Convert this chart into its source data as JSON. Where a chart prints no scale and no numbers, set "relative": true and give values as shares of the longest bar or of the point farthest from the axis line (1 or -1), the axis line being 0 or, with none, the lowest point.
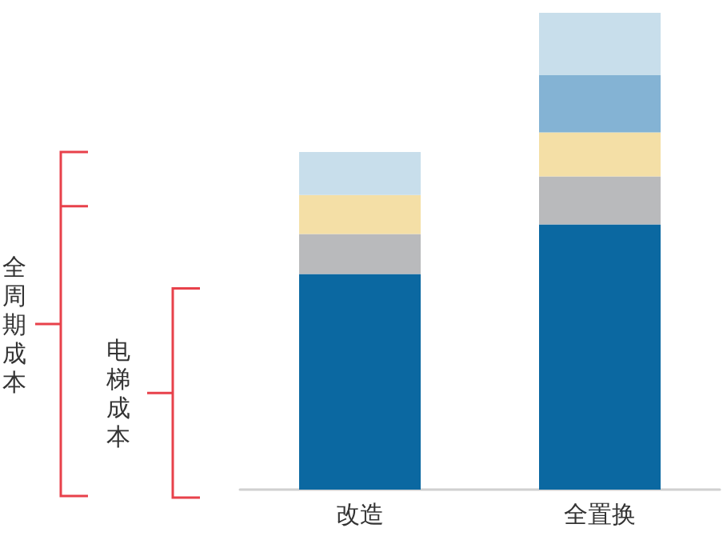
{
  "chart_data": {
    "type": "bar",
    "stacked": true,
    "relative": true,
    "categories": [
      "改造",
      "全置换"
    ],
    "series": [
      {
        "color": "#0b68a1",
        "values": [
          0.452,
          0.556
        ]
      },
      {
        "color": "#b9babc",
        "values": [
          0.084,
          0.101
        ]
      },
      {
        "color": "#f4dfa6",
        "values": [
          0.082,
          0.092
        ]
      },
      {
        "color": "#84b3d4",
        "values": [
          null,
          0.12
        ]
      },
      {
        "color": "#c8deeb",
        "values": [
          0.09,
          0.131
        ]
      }
    ],
    "annotations": [
      "全周期成本",
      "电梯成本"
    ]
  }
}
